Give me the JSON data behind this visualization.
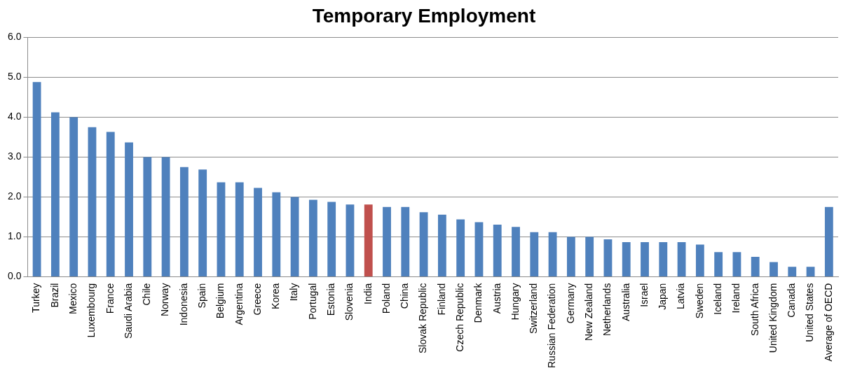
{
  "chart_data": {
    "type": "bar",
    "title": "Temporary Employment",
    "categories": [
      "Turkey",
      "Brazil",
      "Mexico",
      "Luxembourg",
      "France",
      "Saudi Arabia",
      "Chile",
      "Norway",
      "Indonesia",
      "Spain",
      "Belgium",
      "Argentina",
      "Greece",
      "Korea",
      "Italy",
      "Portugal",
      "Estonia",
      "Slovenia",
      "India",
      "Poland",
      "China",
      "Slovak Republic",
      "Finland",
      "Czech Republic",
      "Denmark",
      "Austria",
      "Hungary",
      "Switzerland",
      "Russian Federation",
      "Germany",
      "New Zealand",
      "Netherlands",
      "Australia",
      "Israel",
      "Japan",
      "Latvia",
      "Sweden",
      "Iceland",
      "Ireland",
      "South Africa",
      "United Kingdom",
      "Canada",
      "United States",
      "Average of OECD"
    ],
    "values": [
      4.88,
      4.12,
      4.0,
      3.75,
      3.63,
      3.37,
      3.0,
      3.0,
      2.75,
      2.69,
      2.37,
      2.37,
      2.23,
      2.12,
      2.0,
      1.93,
      1.88,
      1.81,
      1.81,
      1.75,
      1.75,
      1.62,
      1.56,
      1.44,
      1.37,
      1.31,
      1.25,
      1.12,
      1.12,
      1.0,
      1.0,
      0.94,
      0.87,
      0.87,
      0.87,
      0.87,
      0.81,
      0.62,
      0.62,
      0.5,
      0.37,
      0.25,
      0.25,
      1.75
    ],
    "colors": [
      "#4f81bd",
      "#4f81bd",
      "#4f81bd",
      "#4f81bd",
      "#4f81bd",
      "#4f81bd",
      "#4f81bd",
      "#4f81bd",
      "#4f81bd",
      "#4f81bd",
      "#4f81bd",
      "#4f81bd",
      "#4f81bd",
      "#4f81bd",
      "#4f81bd",
      "#4f81bd",
      "#4f81bd",
      "#4f81bd",
      "#c0504d",
      "#4f81bd",
      "#4f81bd",
      "#4f81bd",
      "#4f81bd",
      "#4f81bd",
      "#4f81bd",
      "#4f81bd",
      "#4f81bd",
      "#4f81bd",
      "#4f81bd",
      "#4f81bd",
      "#4f81bd",
      "#4f81bd",
      "#4f81bd",
      "#4f81bd",
      "#4f81bd",
      "#4f81bd",
      "#4f81bd",
      "#4f81bd",
      "#4f81bd",
      "#4f81bd",
      "#4f81bd",
      "#4f81bd",
      "#4f81bd",
      "#4f81bd"
    ],
    "ylim": [
      0,
      6
    ],
    "yticks": [
      {
        "value": 0,
        "label": "0.0"
      },
      {
        "value": 1,
        "label": "1.0"
      },
      {
        "value": 2,
        "label": "2.0"
      },
      {
        "value": 3,
        "label": "3.0"
      },
      {
        "value": 4,
        "label": "4.0"
      },
      {
        "value": 5,
        "label": "5.0"
      },
      {
        "value": 6,
        "label": "6.0"
      }
    ],
    "grid": "y"
  }
}
